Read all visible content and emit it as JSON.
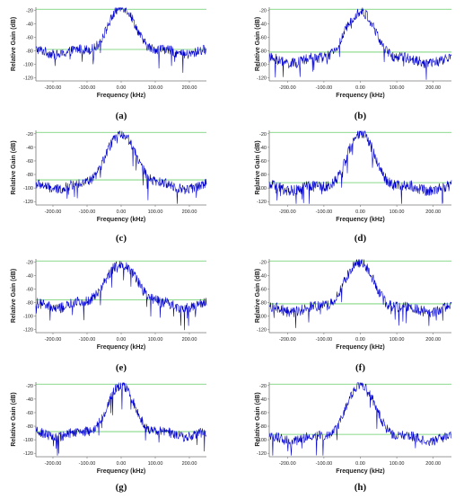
{
  "figure": {
    "colors": {
      "trace": "#0000cc",
      "hline": "#66cc66",
      "axis": "#777777",
      "text": "#222222"
    }
  },
  "chart_data": [
    {
      "panel": "(a)",
      "type": "line",
      "xlabel": "Frequency (kHz)",
      "ylabel": "Relative Gain (dB)",
      "xlim": [
        -250,
        250
      ],
      "ylim": [
        -125,
        -15
      ],
      "xticks": [
        "-200.00",
        "-100.00",
        "0.00",
        "100.00",
        "200.00"
      ],
      "yticks": [
        "-20",
        "-40",
        "-60",
        "-80",
        "-100",
        "-120"
      ],
      "hlines": [
        -18,
        -78
      ],
      "peak": -15,
      "floor": -82,
      "peak_x": 2,
      "half_width": 40,
      "noise": 9
    },
    {
      "panel": "(b)",
      "type": "line",
      "xlabel": "Frequency (kHz)",
      "ylabel": "Relative Gain (dB)",
      "xlim": [
        -250,
        250
      ],
      "ylim": [
        -125,
        -15
      ],
      "xticks": [
        "-200.00",
        "-100.00",
        "0.00",
        "100.00",
        "200.00"
      ],
      "yticks": [
        "-20",
        "-40",
        "-60",
        "-80",
        "-100",
        "-120"
      ],
      "hlines": [
        -18,
        -82
      ],
      "peak": -22,
      "floor": -95,
      "peak_x": 0,
      "half_width": 42,
      "noise": 10
    },
    {
      "panel": "(c)",
      "type": "line",
      "xlabel": "Frequency (kHz)",
      "ylabel": "Relative Gain (dB)",
      "xlim": [
        -250,
        250
      ],
      "ylim": [
        -125,
        -15
      ],
      "xticks": [
        "-200.00",
        "-100.00",
        "0.00",
        "100.00",
        "200.00"
      ],
      "yticks": [
        "-20",
        "-40",
        "-60",
        "-80",
        "-100",
        "-120"
      ],
      "hlines": [
        -18,
        -88
      ],
      "peak": -20,
      "floor": -98,
      "peak_x": 0,
      "half_width": 45,
      "noise": 9
    },
    {
      "panel": "(d)",
      "type": "line",
      "xlabel": "Frequency (kHz)",
      "ylabel": "Relative Gain (dB)",
      "xlim": [
        -250,
        250
      ],
      "ylim": [
        -125,
        -15
      ],
      "xticks": [
        "-200.00",
        "-100.00",
        "0.00",
        "100.00",
        "200.00"
      ],
      "yticks": [
        "-20",
        "-40",
        "-60",
        "-80",
        "-100",
        "-120"
      ],
      "hlines": [
        -18,
        -92
      ],
      "peak": -20,
      "floor": -100,
      "peak_x": 2,
      "half_width": 38,
      "noise": 10
    },
    {
      "panel": "(e)",
      "type": "line",
      "xlabel": "Frequency (kHz)",
      "ylabel": "Relative Gain (dB)",
      "xlim": [
        -250,
        250
      ],
      "ylim": [
        -125,
        -15
      ],
      "xticks": [
        "-200.00",
        "-100.00",
        "0.00",
        "100.00",
        "200.00"
      ],
      "yticks": [
        "-20",
        "-40",
        "-60",
        "-80",
        "-100",
        "-120"
      ],
      "hlines": [
        -18,
        -76
      ],
      "peak": -22,
      "floor": -85,
      "peak_x": 0,
      "half_width": 48,
      "noise": 10
    },
    {
      "panel": "(f)",
      "type": "line",
      "xlabel": "Frequency (kHz)",
      "ylabel": "Relative Gain (dB)",
      "xlim": [
        -250,
        250
      ],
      "ylim": [
        -125,
        -15
      ],
      "xticks": [
        "-200.00",
        "-100.00",
        "0.00",
        "100.00",
        "200.00"
      ],
      "yticks": [
        "-20",
        "-40",
        "-60",
        "-80",
        "-100",
        "-120"
      ],
      "hlines": [
        -18,
        -82
      ],
      "peak": -20,
      "floor": -90,
      "peak_x": -3,
      "half_width": 40,
      "noise": 10
    },
    {
      "panel": "(g)",
      "type": "line",
      "xlabel": "Frequency (kHz)",
      "ylabel": "Relative Gain (dB)",
      "xlim": [
        -250,
        250
      ],
      "ylim": [
        -125,
        -15
      ],
      "xticks": [
        "-200.00",
        "-100.00",
        "0.00",
        "100.00",
        "200.00"
      ],
      "yticks": [
        "-20",
        "-40",
        "-60",
        "-80",
        "-100",
        "-120"
      ],
      "hlines": [
        -18,
        -88
      ],
      "peak": -20,
      "floor": -92,
      "peak_x": 0,
      "half_width": 40,
      "noise": 9
    },
    {
      "panel": "(h)",
      "type": "line",
      "xlabel": "Frequency (kHz)",
      "ylabel": "Relative Gain (dB)",
      "xlim": [
        -250,
        250
      ],
      "ylim": [
        -125,
        -15
      ],
      "xticks": [
        "-200.00",
        "-100.00",
        "0.00",
        "100.00",
        "200.00"
      ],
      "yticks": [
        "-20",
        "-40",
        "-60",
        "-80",
        "-100",
        "-120"
      ],
      "hlines": [
        -18,
        -92
      ],
      "peak": -18,
      "floor": -98,
      "peak_x": 2,
      "half_width": 40,
      "noise": 9
    }
  ]
}
